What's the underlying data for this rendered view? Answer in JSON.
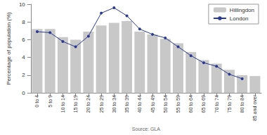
{
  "chart_data": {
    "type": "bar",
    "ylabel": "Percentage of population (%)",
    "xlabel": "Source: GLA",
    "categories": [
      "0 to 4",
      "5 to 9",
      "10 to 14",
      "15 to 19",
      "20 to 24",
      "25 to 29",
      "30 to 34",
      "35 to 39",
      "40 to 44",
      "45 to 49",
      "50 to 54",
      "55 to 59",
      "60 to 64",
      "65 to 69",
      "70 to 74",
      "75 to 79",
      "80 to 84",
      "85 and over"
    ],
    "series": [
      {
        "name": "Hillingdon",
        "type": "bar",
        "color": "#c8c8c8",
        "values": [
          7.2,
          7.2,
          6.3,
          6.0,
          6.9,
          7.6,
          7.9,
          8.1,
          6.9,
          6.6,
          6.1,
          5.6,
          4.6,
          3.7,
          3.3,
          2.6,
          2.0,
          1.9
        ]
      },
      {
        "name": "London",
        "type": "line",
        "color": "#2b3990",
        "marker": "circle",
        "line_style": "solid",
        "values": [
          6.9,
          6.8,
          5.8,
          5.2,
          6.4,
          9.0,
          9.6,
          8.7,
          7.2,
          6.6,
          6.2,
          5.2,
          4.2,
          3.4,
          3.0,
          2.1,
          1.6,
          null
        ]
      }
    ],
    "ylim": [
      0,
      10
    ],
    "yticks": [
      0,
      2,
      4,
      6,
      8,
      10
    ],
    "grid": false,
    "legend": "top-right"
  }
}
